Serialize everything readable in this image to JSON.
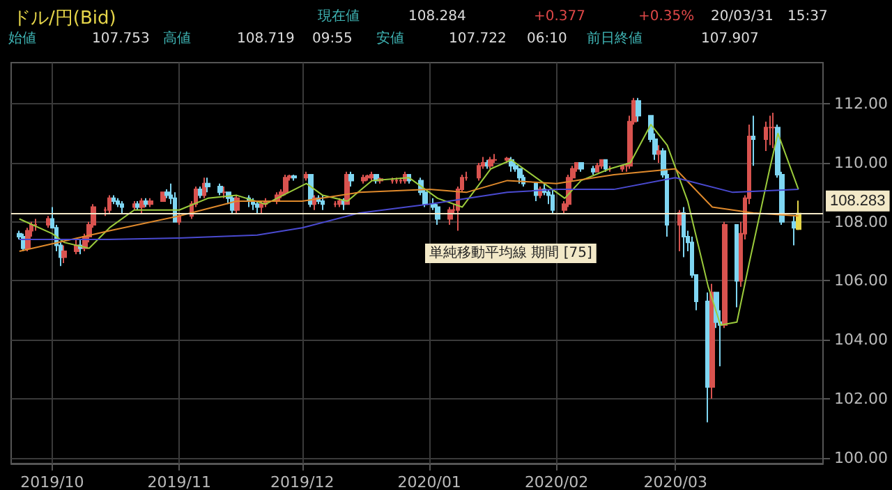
{
  "chart_data": {
    "type": "candlestick",
    "title": "ドル/円(Bid)",
    "annotations": [
      "現在値",
      "108.284",
      "+0.377",
      "+0.35%",
      "20/03/31",
      "15:37",
      "始値",
      "107.753",
      "高値",
      "108.719",
      "09:55",
      "安値",
      "107.722",
      "06:10",
      "前日終値",
      "107.907",
      "単純移動平均線 期間 [75]"
    ],
    "colors": [
      "#7fd6f2",
      "#7fd6f2",
      "#d9534f",
      "#d9534f",
      "#d9534f",
      "#d9534f",
      "#7fd6f2",
      "#7fd6f2",
      "#7fd6f2",
      "#d9534f",
      "#d9534f",
      "#7fd6f2",
      "#d9534f",
      "#d9534f",
      "#d9534f",
      "#d9534f",
      "#d9534f",
      "#7fd6f2",
      "#7fd6f2",
      "#7fd6f2",
      "#d9534f",
      "#7fd6f2",
      "#d9534f",
      "#7fd6f2",
      "#d9534f",
      "#d9534f",
      "#7fd6f2",
      "#7fd6f2",
      "#7fd6f2",
      "#d9534f",
      "#d9534f",
      "#d9534f",
      "#7fd6f2",
      "#d9534f",
      "#7fd6f2",
      "#7fd6f2",
      "#d9534f",
      "#7fd6f2",
      "#7fd6f2",
      "#d9534f",
      "#7fd6f2",
      "#7fd6f2",
      "#7fd6f2",
      "#d9534f",
      "#d9534f",
      "#d9534f",
      "#d9534f",
      "#d9534f",
      "#d9534f",
      "#7fd6f2",
      "#d9534f",
      "#7fd6f2",
      "#d9534f",
      "#7fd6f2",
      "#7fd6f2",
      "#d9534f",
      "#d9534f",
      "#7fd6f2",
      "#d9534f",
      "#7fd6f2",
      "#d9534f",
      "#d9534f",
      "#d9534f",
      "#7fd6f2",
      "#d9534f",
      "#d9534f",
      "#d9534f",
      "#d9534f",
      "#d9534f",
      "#7fd6f2",
      "#7fd6f2",
      "#7fd6f2",
      "#7fd6f2",
      "#7fd6f2",
      "#d9534f",
      "#d9534f",
      "#d9534f",
      "#d9534f",
      "#d9534f",
      "#d9534f",
      "#d9534f",
      "#7fd6f2",
      "#d9534f",
      "#d9534f",
      "#d9534f",
      "#7fd6f2",
      "#7fd6f2",
      "#7fd6f2",
      "#7fd6f2",
      "#7fd6f2",
      "#d9534f",
      "#7fd6f2",
      "#7fd6f2",
      "#7fd6f2",
      "#d9534f",
      "#d9534f",
      "#d9534f",
      "#d9534f",
      "#7fd6f2",
      "#7fd6f2",
      "#d9534f",
      "#d9534f",
      "#7fd6f2",
      "#d9534f",
      "#d9534f",
      "#d9534f",
      "#d9534f",
      "#d9534f",
      "#7fd6f2",
      "#7fd6f2",
      "#7fd6f2",
      "#d9534f",
      "#7fd6f2",
      "#7fd6f2",
      "#d9534f",
      "#7fd6f2",
      "#7fd6f2",
      "#7fd6f2",
      "#7fd6f2",
      "#7fd6f2",
      "#d9534f",
      "#7fd6f2",
      "#7fd6f2",
      "#d9534f",
      "#7fd6f2",
      "#d9534f",
      "#d9534f",
      "#d9534f",
      "#7fd6f2",
      "#d9534f",
      "#d9534f",
      "#d9534f",
      "#7fd6f2",
      "#7fd6f2",
      "#7fd6f2",
      "#e6d64a"
    ],
    "x": [
      "2019-09-23",
      "2019-09-24",
      "2019-09-25",
      "2019-09-26",
      "2019-09-27",
      "2019-09-30",
      "2019-10-01",
      "2019-10-02",
      "2019-10-03",
      "2019-10-04",
      "2019-10-07",
      "2019-10-08",
      "2019-10-09",
      "2019-10-10",
      "2019-10-11",
      "2019-10-14",
      "2019-10-15",
      "2019-10-16",
      "2019-10-17",
      "2019-10-18",
      "2019-10-21",
      "2019-10-22",
      "2019-10-23",
      "2019-10-24",
      "2019-10-25",
      "2019-10-28",
      "2019-10-29",
      "2019-10-30",
      "2019-10-31",
      "2019-11-01",
      "2019-11-04",
      "2019-11-05",
      "2019-11-06",
      "2019-11-07",
      "2019-11-08",
      "2019-11-11",
      "2019-11-12",
      "2019-11-13",
      "2019-11-14",
      "2019-11-15",
      "2019-11-18",
      "2019-11-19",
      "2019-11-20",
      "2019-11-21",
      "2019-11-22",
      "2019-11-25",
      "2019-11-26",
      "2019-11-27",
      "2019-11-28",
      "2019-11-29",
      "2019-12-02",
      "2019-12-03",
      "2019-12-04",
      "2019-12-05",
      "2019-12-06",
      "2019-12-09",
      "2019-12-10",
      "2019-12-11",
      "2019-12-12",
      "2019-12-13",
      "2019-12-16",
      "2019-12-17",
      "2019-12-18",
      "2019-12-19",
      "2019-12-20",
      "2019-12-23",
      "2019-12-24",
      "2019-12-25",
      "2019-12-26",
      "2019-12-27",
      "2019-12-30",
      "2019-12-31",
      "2020-01-02",
      "2020-01-03",
      "2020-01-06",
      "2020-01-07",
      "2020-01-08",
      "2020-01-09",
      "2020-01-10",
      "2020-01-13",
      "2020-01-14",
      "2020-01-15",
      "2020-01-16",
      "2020-01-17",
      "2020-01-20",
      "2020-01-21",
      "2020-01-22",
      "2020-01-23",
      "2020-01-24",
      "2020-01-27",
      "2020-01-28",
      "2020-01-29",
      "2020-01-30",
      "2020-01-31",
      "2020-02-03",
      "2020-02-04",
      "2020-02-05",
      "2020-02-06",
      "2020-02-07",
      "2020-02-10",
      "2020-02-11",
      "2020-02-12",
      "2020-02-13",
      "2020-02-14",
      "2020-02-17",
      "2020-02-18",
      "2020-02-19",
      "2020-02-20",
      "2020-02-21",
      "2020-02-24",
      "2020-02-25",
      "2020-02-26",
      "2020-02-27",
      "2020-02-28",
      "2020-03-02",
      "2020-03-03",
      "2020-03-04",
      "2020-03-05",
      "2020-03-06",
      "2020-03-09",
      "2020-03-10",
      "2020-03-11",
      "2020-03-12",
      "2020-03-13",
      "2020-03-16",
      "2020-03-17",
      "2020-03-18",
      "2020-03-19",
      "2020-03-20",
      "2020-03-23",
      "2020-03-24",
      "2020-03-25",
      "2020-03-26",
      "2020-03-27",
      "2020-03-30",
      "2020-03-31"
    ],
    "ohlc": [
      [
        107.6,
        107.7,
        107.4,
        107.5
      ],
      [
        107.5,
        107.6,
        107.0,
        107.1
      ],
      [
        107.1,
        107.8,
        107.0,
        107.7
      ],
      [
        107.7,
        108.0,
        107.5,
        107.9
      ],
      [
        107.9,
        108.1,
        107.7,
        107.9
      ],
      [
        107.9,
        108.2,
        107.8,
        108.1
      ],
      [
        108.1,
        108.5,
        107.8,
        107.8
      ],
      [
        107.8,
        107.9,
        107.0,
        107.2
      ],
      [
        107.2,
        107.3,
        106.5,
        106.8
      ],
      [
        106.8,
        107.2,
        106.6,
        107.0
      ],
      [
        107.0,
        107.4,
        106.9,
        107.2
      ],
      [
        107.2,
        107.4,
        106.9,
        107.1
      ],
      [
        107.1,
        107.6,
        107.0,
        107.5
      ],
      [
        107.5,
        108.0,
        107.3,
        107.9
      ],
      [
        107.9,
        108.6,
        107.8,
        108.5
      ],
      [
        108.4,
        108.5,
        108.2,
        108.4
      ],
      [
        108.4,
        108.9,
        108.3,
        108.8
      ],
      [
        108.8,
        108.9,
        108.6,
        108.7
      ],
      [
        108.7,
        108.8,
        108.5,
        108.6
      ],
      [
        108.6,
        108.7,
        108.3,
        108.5
      ],
      [
        108.5,
        108.7,
        108.4,
        108.6
      ],
      [
        108.6,
        108.7,
        108.4,
        108.5
      ],
      [
        108.5,
        108.8,
        108.3,
        108.7
      ],
      [
        108.7,
        108.8,
        108.5,
        108.6
      ],
      [
        108.6,
        108.8,
        108.5,
        108.7
      ],
      [
        108.7,
        109.0,
        108.7,
        109.0
      ],
      [
        109.0,
        109.1,
        108.8,
        108.9
      ],
      [
        108.9,
        109.3,
        108.6,
        108.8
      ],
      [
        108.8,
        109.0,
        108.0,
        108.0
      ],
      [
        108.0,
        108.3,
        107.9,
        108.2
      ],
      [
        108.2,
        108.7,
        108.1,
        108.6
      ],
      [
        108.6,
        109.2,
        108.5,
        109.1
      ],
      [
        109.1,
        109.2,
        108.8,
        108.9
      ],
      [
        108.9,
        109.5,
        108.8,
        109.3
      ],
      [
        109.3,
        109.5,
        109.0,
        109.2
      ],
      [
        109.2,
        109.3,
        108.9,
        109.0
      ],
      [
        109.0,
        109.2,
        108.8,
        109.0
      ],
      [
        109.0,
        109.0,
        108.6,
        108.8
      ],
      [
        108.8,
        108.9,
        108.3,
        108.4
      ],
      [
        108.4,
        108.9,
        108.3,
        108.8
      ],
      [
        108.8,
        108.9,
        108.5,
        108.7
      ],
      [
        108.7,
        108.8,
        108.4,
        108.6
      ],
      [
        108.6,
        108.7,
        108.3,
        108.5
      ],
      [
        108.5,
        108.7,
        108.3,
        108.6
      ],
      [
        108.6,
        108.8,
        108.5,
        108.7
      ],
      [
        108.7,
        109.0,
        108.6,
        108.9
      ],
      [
        108.9,
        109.1,
        108.8,
        109.0
      ],
      [
        109.0,
        109.6,
        108.9,
        109.5
      ],
      [
        109.5,
        109.6,
        109.4,
        109.55
      ],
      [
        109.55,
        109.6,
        109.4,
        109.5
      ],
      [
        109.5,
        109.7,
        109.4,
        109.6
      ],
      [
        109.6,
        109.6,
        108.5,
        108.6
      ],
      [
        108.6,
        108.9,
        108.4,
        108.8
      ],
      [
        108.8,
        108.9,
        108.6,
        108.7
      ],
      [
        108.7,
        108.9,
        108.4,
        108.6
      ],
      [
        108.6,
        108.7,
        108.5,
        108.6
      ],
      [
        108.6,
        108.8,
        108.5,
        108.7
      ],
      [
        108.7,
        108.8,
        108.4,
        108.6
      ],
      [
        108.6,
        109.7,
        108.6,
        109.6
      ],
      [
        109.6,
        109.7,
        109.2,
        109.4
      ],
      [
        109.4,
        109.6,
        109.3,
        109.5
      ],
      [
        109.5,
        109.6,
        109.4,
        109.55
      ],
      [
        109.5,
        109.7,
        109.4,
        109.6
      ],
      [
        109.6,
        109.6,
        109.3,
        109.4
      ],
      [
        109.4,
        109.5,
        109.3,
        109.45
      ],
      [
        109.4,
        109.5,
        109.3,
        109.4
      ],
      [
        109.4,
        109.5,
        109.3,
        109.4
      ],
      [
        109.4,
        109.5,
        109.3,
        109.4
      ],
      [
        109.4,
        109.7,
        109.3,
        109.6
      ],
      [
        109.6,
        109.6,
        109.3,
        109.4
      ],
      [
        109.4,
        109.5,
        108.9,
        109.0
      ],
      [
        109.0,
        109.1,
        108.5,
        108.6
      ],
      [
        108.6,
        108.8,
        108.4,
        108.5
      ],
      [
        108.5,
        108.6,
        107.9,
        108.1
      ],
      [
        108.1,
        108.5,
        107.9,
        108.4
      ],
      [
        108.4,
        108.6,
        108.3,
        108.4
      ],
      [
        108.4,
        109.2,
        107.7,
        109.1
      ],
      [
        109.1,
        109.6,
        109.0,
        109.5
      ],
      [
        109.5,
        109.7,
        109.4,
        109.5
      ],
      [
        109.5,
        110.0,
        109.4,
        109.9
      ],
      [
        109.9,
        110.2,
        109.8,
        110.0
      ],
      [
        110.0,
        110.1,
        109.8,
        109.9
      ],
      [
        109.9,
        110.2,
        109.8,
        110.1
      ],
      [
        110.1,
        110.3,
        110.0,
        110.1
      ],
      [
        110.1,
        110.2,
        110.0,
        110.15
      ],
      [
        110.1,
        110.2,
        109.7,
        109.9
      ],
      [
        109.9,
        110.0,
        109.7,
        109.8
      ],
      [
        109.8,
        109.8,
        109.3,
        109.5
      ],
      [
        109.5,
        109.6,
        109.2,
        109.3
      ],
      [
        109.3,
        109.3,
        108.7,
        108.9
      ],
      [
        108.9,
        109.2,
        108.8,
        109.1
      ],
      [
        109.1,
        109.3,
        108.9,
        109.0
      ],
      [
        109.0,
        109.1,
        108.6,
        108.9
      ],
      [
        108.9,
        109.1,
        108.3,
        108.4
      ],
      [
        108.4,
        108.7,
        108.3,
        108.6
      ],
      [
        108.6,
        109.6,
        108.5,
        109.5
      ],
      [
        109.5,
        109.9,
        109.4,
        109.8
      ],
      [
        109.8,
        110.0,
        109.7,
        110.0
      ],
      [
        110.0,
        110.0,
        109.7,
        109.8
      ],
      [
        109.8,
        109.9,
        109.6,
        109.7
      ],
      [
        109.7,
        110.0,
        109.7,
        109.9
      ],
      [
        109.9,
        110.1,
        109.8,
        110.1
      ],
      [
        110.1,
        110.1,
        109.7,
        109.8
      ],
      [
        109.8,
        109.9,
        109.7,
        109.8
      ],
      [
        109.8,
        109.9,
        109.7,
        109.9
      ],
      [
        109.9,
        110.0,
        109.7,
        109.9
      ],
      [
        109.9,
        111.6,
        109.8,
        111.4
      ],
      [
        111.4,
        112.2,
        111.3,
        112.1
      ],
      [
        112.1,
        112.2,
        111.4,
        111.6
      ],
      [
        111.6,
        111.6,
        110.7,
        110.8
      ],
      [
        110.8,
        111.0,
        110.1,
        110.3
      ],
      [
        110.3,
        110.6,
        110.0,
        110.4
      ],
      [
        110.4,
        110.5,
        109.5,
        109.6
      ],
      [
        109.6,
        109.8,
        107.5,
        107.9
      ],
      [
        107.9,
        108.4,
        107.0,
        108.3
      ],
      [
        108.3,
        108.5,
        106.8,
        107.5
      ],
      [
        107.5,
        107.7,
        107.0,
        107.3
      ],
      [
        107.3,
        107.5,
        106.1,
        106.2
      ],
      [
        106.2,
        106.2,
        105.0,
        105.3
      ],
      [
        105.3,
        105.6,
        101.2,
        102.4
      ],
      [
        102.4,
        105.9,
        102.0,
        105.6
      ],
      [
        105.6,
        105.6,
        104.4,
        104.6
      ],
      [
        104.6,
        105.0,
        103.1,
        104.5
      ],
      [
        104.5,
        108.0,
        104.4,
        107.9
      ],
      [
        107.9,
        107.9,
        105.1,
        106.0
      ],
      [
        106.0,
        108.0,
        105.8,
        107.6
      ],
      [
        107.6,
        108.9,
        107.4,
        108.8
      ],
      [
        108.8,
        111.3,
        108.6,
        110.9
      ],
      [
        110.9,
        111.6,
        109.9,
        110.8
      ],
      [
        110.8,
        111.4,
        110.4,
        111.2
      ],
      [
        111.2,
        111.6,
        110.6,
        111.2
      ],
      [
        111.2,
        111.7,
        110.5,
        111.2
      ],
      [
        111.2,
        111.3,
        109.5,
        109.6
      ],
      [
        109.6,
        109.7,
        107.9,
        108.0
      ],
      [
        108.0,
        108.2,
        107.2,
        107.8
      ],
      [
        107.753,
        108.719,
        107.722,
        108.284
      ]
    ],
    "series": [
      {
        "type": "line",
        "color": "#9ccc3c",
        "x": [
          "2019-09-23",
          "2019-10-01",
          "2019-10-04",
          "2019-10-10",
          "2019-10-15",
          "2019-10-21",
          "2019-11-01",
          "2019-11-08",
          "2019-11-15",
          "2019-11-22",
          "2019-12-02",
          "2019-12-06",
          "2019-12-12",
          "2019-12-18",
          "2019-12-27",
          "2020-01-03",
          "2020-01-09",
          "2020-01-16",
          "2020-01-21",
          "2020-01-28",
          "2020-02-03",
          "2020-02-07",
          "2020-02-14",
          "2020-02-19",
          "2020-02-24",
          "2020-02-28",
          "2020-03-04",
          "2020-03-09",
          "2020-03-12",
          "2020-03-16",
          "2020-03-19",
          "2020-03-24",
          "2020-03-26",
          "2020-03-31"
        ],
        "values": [
          108.1,
          107.6,
          107.3,
          107.1,
          107.8,
          108.4,
          108.4,
          108.8,
          108.9,
          108.6,
          109.3,
          108.9,
          108.7,
          109.4,
          109.5,
          108.8,
          108.5,
          109.8,
          110.1,
          109.4,
          108.8,
          109.4,
          109.8,
          110.0,
          111.3,
          110.6,
          108.7,
          105.8,
          104.5,
          104.6,
          106.6,
          109.8,
          111.0,
          109.1
        ]
      },
      {
        "type": "line",
        "color": "#e08a2c",
        "x": [
          "2019-09-23",
          "2019-10-15",
          "2019-11-01",
          "2019-11-15",
          "2019-12-01",
          "2019-12-15",
          "2020-01-01",
          "2020-01-10",
          "2020-01-20",
          "2020-02-01",
          "2020-02-15",
          "2020-03-01",
          "2020-03-10",
          "2020-03-20",
          "2020-03-31"
        ],
        "values": [
          107.0,
          107.7,
          108.2,
          108.7,
          108.7,
          109.0,
          109.1,
          109.0,
          109.4,
          109.3,
          109.6,
          109.8,
          108.5,
          108.3,
          108.2
        ]
      },
      {
        "type": "line",
        "color": "#4a4ad0",
        "x": [
          "2019-09-23",
          "2019-10-15",
          "2019-11-01",
          "2019-11-20",
          "2019-12-01",
          "2019-12-15",
          "2020-01-01",
          "2020-01-20",
          "2020-02-01",
          "2020-02-15",
          "2020-03-01",
          "2020-03-15",
          "2020-03-31"
        ],
        "values": [
          107.4,
          107.4,
          107.45,
          107.55,
          107.8,
          108.3,
          108.6,
          109.0,
          109.1,
          109.1,
          109.5,
          109.0,
          109.1
        ]
      }
    ],
    "ref_lines": [
      {
        "axis": "y",
        "value": 108.283,
        "label": "108.283",
        "color": "#f3e9c8"
      }
    ],
    "xlim": [
      "2019-09-21",
      "2020-04-06"
    ],
    "xticks": [
      {
        "value": "2019-10-01",
        "label": "2019/10"
      },
      {
        "value": "2019-11-01",
        "label": "2019/11"
      },
      {
        "value": "2019-12-01",
        "label": "2019/12"
      },
      {
        "value": "2020-01-01",
        "label": "2020/01"
      },
      {
        "value": "2020-02-01",
        "label": "2020/02"
      },
      {
        "value": "2020-03-01",
        "label": "2020/03"
      }
    ],
    "ylim": [
      99.8,
      113.4
    ],
    "yticks": [
      {
        "value": 100,
        "label": "100.00"
      },
      {
        "value": 102,
        "label": "102.00"
      },
      {
        "value": 104,
        "label": "104.00"
      },
      {
        "value": 106,
        "label": "106.00"
      },
      {
        "value": 108,
        "label": "108.00"
      },
      {
        "value": 110,
        "label": "110.00"
      },
      {
        "value": 112,
        "label": "112.00"
      }
    ],
    "grid": true,
    "marker": "none",
    "line_style": "solid"
  }
}
